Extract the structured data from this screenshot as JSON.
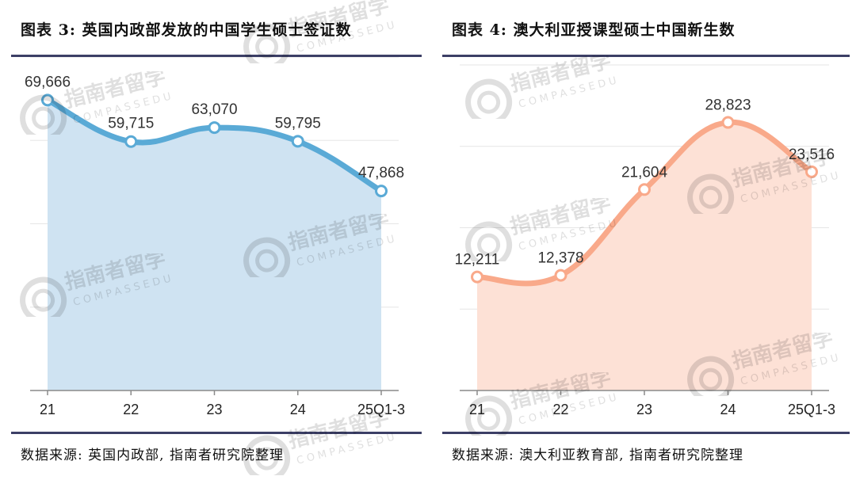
{
  "charts": {
    "left": {
      "title": "图表 3: 英国内政部发放的中国学生硕士签证数",
      "source": "数据来源: 英国内政部, 指南者研究院整理",
      "fill_color": "#cfe3f2",
      "line_color": "#5aaad6"
    },
    "right": {
      "title": "图表 4: 澳大利亚授课型硕士中国新生数",
      "source": "数据来源: 澳大利亚教育部, 指南者研究院整理",
      "fill_color": "#fde1d6",
      "line_color": "#f9a98a"
    }
  },
  "watermark": {
    "cn": "指南者留学",
    "en": "COMPASSEDU"
  },
  "chart_data": [
    {
      "type": "area",
      "categories": [
        "21",
        "22",
        "23",
        "24",
        "25Q1-3"
      ],
      "values": [
        69666,
        59715,
        63070,
        59795,
        47868
      ],
      "labels": [
        "69,666",
        "59,715",
        "63,070",
        "59,795",
        "47,868"
      ],
      "ylim": [
        0,
        80000
      ],
      "grid": true,
      "legend": "none"
    },
    {
      "type": "area",
      "categories": [
        "21",
        "22",
        "23",
        "24",
        "25Q1-3"
      ],
      "values": [
        12211,
        12378,
        21604,
        28823,
        23516
      ],
      "labels": [
        "12,211",
        "12,378",
        "21,604",
        "28,823",
        "23,516"
      ],
      "ylim": [
        0,
        35000
      ],
      "grid": true,
      "legend": "none"
    }
  ]
}
